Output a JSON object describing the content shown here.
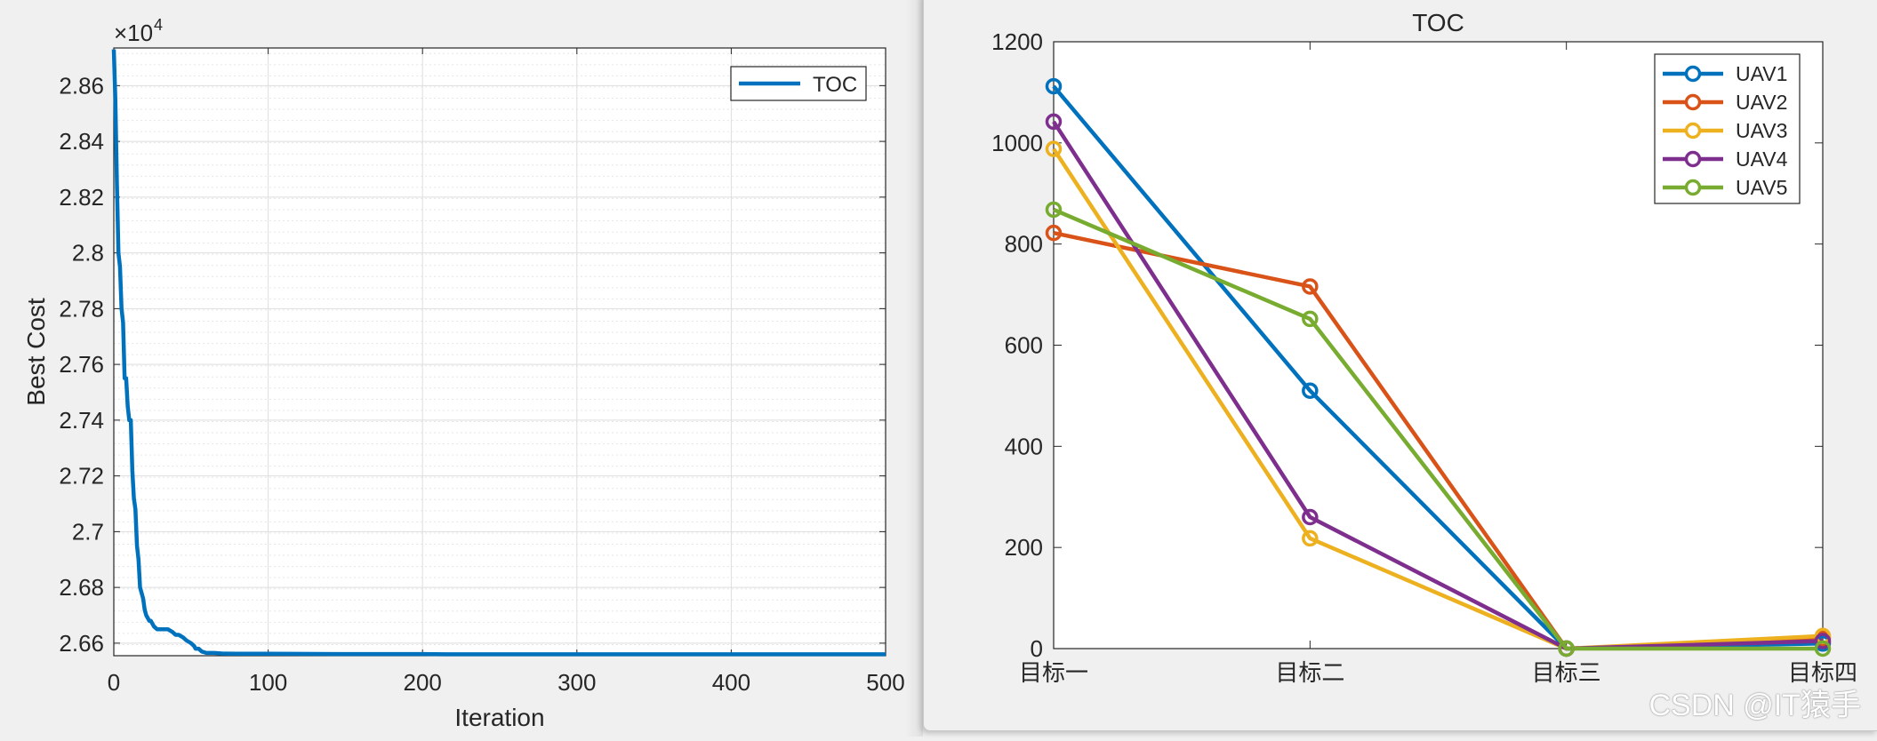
{
  "charts": [
    {
      "type": "line",
      "xlabel": "Iteration",
      "ylabel": "Best Cost",
      "exponent_label": "×10",
      "exponent_power": "4",
      "xlim": [
        0,
        500
      ],
      "ylim": [
        2.6555,
        2.8735
      ],
      "xticks": [
        0,
        100,
        200,
        300,
        400,
        500
      ],
      "xtick_labels": [
        "0",
        "100",
        "200",
        "300",
        "400",
        "500"
      ],
      "yticks": [
        2.66,
        2.68,
        2.7,
        2.72,
        2.74,
        2.76,
        2.78,
        2.8,
        2.82,
        2.84,
        2.86
      ],
      "ytick_labels": [
        "2.66",
        "2.68",
        "2.7",
        "2.72",
        "2.74",
        "2.76",
        "2.78",
        "2.8",
        "2.82",
        "2.84",
        "2.86"
      ],
      "grid": true,
      "minor_grid": true,
      "legend_position": "top-right",
      "series": [
        {
          "name": "TOC",
          "color": "#0072BD",
          "x": [
            0,
            1,
            2,
            3,
            4,
            5,
            6,
            7,
            8,
            9,
            10,
            11,
            12,
            13,
            14,
            15,
            16,
            17,
            18,
            19,
            20,
            21,
            22,
            23,
            24,
            25,
            26,
            28,
            30,
            32,
            35,
            38,
            40,
            42,
            45,
            47,
            50,
            52,
            53,
            55,
            57,
            60,
            65,
            70,
            80,
            90,
            100,
            150,
            200,
            215,
            300,
            400,
            500
          ],
          "y": [
            2.873,
            2.855,
            2.825,
            2.8,
            2.795,
            2.78,
            2.775,
            2.755,
            2.755,
            2.745,
            2.74,
            2.74,
            2.722,
            2.712,
            2.708,
            2.695,
            2.69,
            2.68,
            2.678,
            2.676,
            2.672,
            2.67,
            2.669,
            2.668,
            2.668,
            2.667,
            2.666,
            2.665,
            2.665,
            2.665,
            2.665,
            2.664,
            2.663,
            2.663,
            2.662,
            2.661,
            2.66,
            2.659,
            2.658,
            2.658,
            2.657,
            2.6565,
            2.6565,
            2.6563,
            2.6562,
            2.6562,
            2.6562,
            2.6561,
            2.6561,
            2.656,
            2.656,
            2.656,
            2.656
          ]
        }
      ]
    },
    {
      "type": "line",
      "title": "TOC",
      "categories": [
        "目标一",
        "目标二",
        "目标三",
        "目标四"
      ],
      "ylim": [
        0,
        1200
      ],
      "yticks": [
        0,
        200,
        400,
        600,
        800,
        1000,
        1200
      ],
      "ytick_labels": [
        "0",
        "200",
        "400",
        "600",
        "800",
        "1000",
        "1200"
      ],
      "grid": false,
      "legend_position": "top-right",
      "marker": "circle",
      "series": [
        {
          "name": "UAV1",
          "color": "#0072BD",
          "values": [
            1112,
            510,
            0,
            10
          ]
        },
        {
          "name": "UAV2",
          "color": "#D95319",
          "values": [
            822,
            716,
            0,
            20
          ]
        },
        {
          "name": "UAV3",
          "color": "#EDB120",
          "values": [
            988,
            218,
            0,
            25
          ]
        },
        {
          "name": "UAV4",
          "color": "#7E2F8E",
          "values": [
            1042,
            260,
            0,
            15
          ]
        },
        {
          "name": "UAV5",
          "color": "#77AC30",
          "values": [
            868,
            652,
            0,
            0
          ]
        }
      ]
    }
  ],
  "watermark": "CSDN @IT猿手"
}
